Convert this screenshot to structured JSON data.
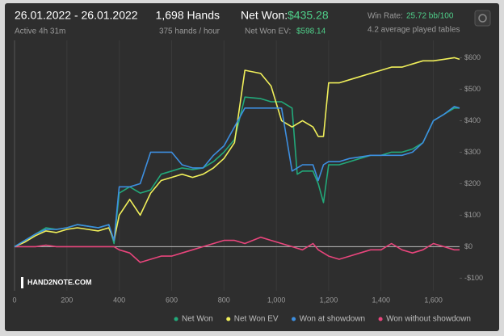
{
  "header": {
    "date_range": "26.01.2022 - 26.01.2022",
    "active": "Active 4h 31m",
    "hands": "1,698 Hands",
    "hands_per_hour": "375 hands / hour",
    "net_won_label": "Net Won:",
    "net_won_value": "$435.28",
    "net_won_ev_label": "Net Won  EV:",
    "net_won_ev_value": "$598.14",
    "win_rate_label": "Win Rate:",
    "win_rate_value": "25.72 bb/100",
    "tables": "4.2 average played tables"
  },
  "logo": "HAND2NOTE.COM",
  "chart_data": {
    "type": "line",
    "x": [
      0,
      40,
      80,
      120,
      160,
      200,
      240,
      280,
      320,
      360,
      380,
      400,
      440,
      480,
      520,
      560,
      600,
      640,
      680,
      720,
      760,
      800,
      840,
      880,
      940,
      980,
      1020,
      1060,
      1080,
      1100,
      1140,
      1160,
      1180,
      1200,
      1240,
      1280,
      1320,
      1360,
      1400,
      1440,
      1480,
      1520,
      1560,
      1600,
      1640,
      1680,
      1700
    ],
    "series": [
      {
        "name": "Net Won",
        "color": "#22a97a",
        "values": [
          0,
          20,
          40,
          60,
          55,
          60,
          70,
          65,
          60,
          70,
          10,
          170,
          190,
          170,
          180,
          230,
          240,
          250,
          245,
          250,
          270,
          300,
          340,
          475,
          470,
          460,
          460,
          440,
          230,
          240,
          240,
          200,
          140,
          260,
          260,
          270,
          280,
          290,
          290,
          300,
          300,
          310,
          330,
          400,
          420,
          440,
          440
        ]
      },
      {
        "name": "Net Won  EV",
        "color": "#f0ef5a",
        "values": [
          0,
          15,
          35,
          50,
          45,
          55,
          60,
          55,
          50,
          60,
          20,
          100,
          150,
          100,
          170,
          210,
          220,
          230,
          220,
          230,
          250,
          280,
          330,
          560,
          550,
          510,
          400,
          380,
          390,
          400,
          380,
          350,
          350,
          520,
          520,
          530,
          540,
          550,
          560,
          570,
          570,
          580,
          590,
          590,
          595,
          600,
          595
        ]
      },
      {
        "name": "Won at showdown",
        "color": "#3d8fe0",
        "values": [
          0,
          20,
          40,
          55,
          55,
          60,
          70,
          65,
          60,
          70,
          20,
          190,
          190,
          200,
          300,
          300,
          300,
          260,
          250,
          250,
          290,
          320,
          380,
          440,
          440,
          440,
          440,
          240,
          250,
          260,
          260,
          210,
          260,
          270,
          270,
          280,
          285,
          290,
          290,
          290,
          290,
          300,
          330,
          400,
          420,
          445,
          440
        ]
      },
      {
        "name": "Won without showdown",
        "color": "#e8457c",
        "values": [
          0,
          0,
          0,
          5,
          0,
          0,
          0,
          0,
          0,
          0,
          0,
          -10,
          -20,
          -50,
          -40,
          -30,
          -30,
          -20,
          -10,
          0,
          10,
          20,
          20,
          10,
          30,
          20,
          10,
          0,
          -5,
          -10,
          10,
          -10,
          -20,
          -30,
          -40,
          -30,
          -20,
          -10,
          -10,
          10,
          -10,
          -20,
          -10,
          10,
          0,
          -10,
          -10
        ]
      }
    ],
    "xlim": [
      0,
      1700
    ],
    "ylim": [
      -140,
      655
    ],
    "xticks": [
      0,
      200,
      400,
      600,
      800,
      {
        "value": 1000,
        "label": "1,000"
      },
      {
        "value": 1200,
        "label": "1,200"
      },
      {
        "value": 1400,
        "label": "1,400"
      },
      {
        "value": 1600,
        "label": "1,600"
      }
    ],
    "yticks": [
      {
        "value": -100,
        "label": "-$100"
      },
      {
        "value": 0,
        "label": "$0"
      },
      {
        "value": 100,
        "label": "$100"
      },
      {
        "value": 200,
        "label": "$200"
      },
      {
        "value": 300,
        "label": "$300"
      },
      {
        "value": 400,
        "label": "$400"
      },
      {
        "value": 500,
        "label": "$500"
      },
      {
        "value": 600,
        "label": "$600"
      }
    ],
    "grid": true
  }
}
